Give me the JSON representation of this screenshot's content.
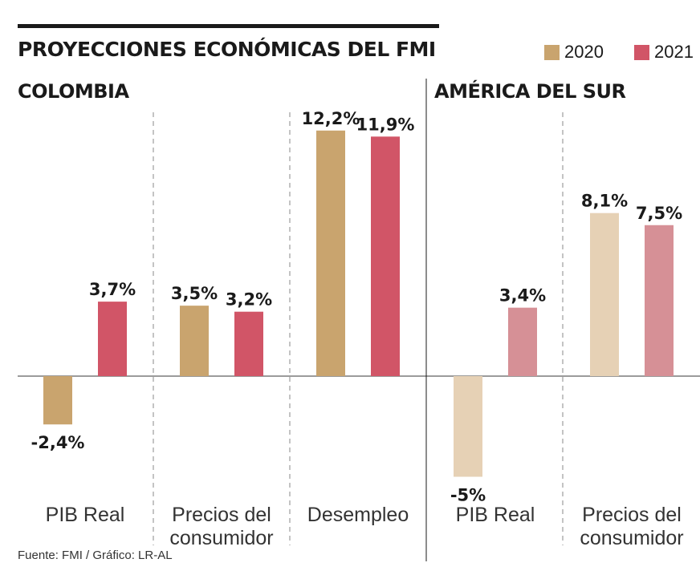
{
  "title": "PROYECCIONES ECONÓMICAS DEL FMI",
  "source": "Fuente: FMI / Gráfico: LR-AL",
  "legend": [
    {
      "label": "2020",
      "color": "#c9a46e"
    },
    {
      "label": "2021",
      "color": "#d15567"
    }
  ],
  "chart_data": [
    {
      "type": "bar",
      "section": "COLOMBIA",
      "categories": [
        "PIB Real",
        "Precios del consumidor",
        "Desempleo"
      ],
      "category_lines": [
        [
          "PIB Real"
        ],
        [
          "Precios del",
          "consumidor"
        ],
        [
          "Desempleo"
        ]
      ],
      "series": [
        {
          "name": "2020",
          "values": [
            -2.4,
            3.5,
            12.2
          ],
          "labels": [
            "-2,4%",
            "3,5%",
            "12,2%"
          ],
          "color": "#c9a46e"
        },
        {
          "name": "2021",
          "values": [
            3.7,
            3.2,
            11.9
          ],
          "labels": [
            "3,7%",
            "3,2%",
            "11,9%"
          ],
          "color": "#d15567"
        }
      ]
    },
    {
      "type": "bar",
      "section": "AMÉRICA DEL SUR",
      "categories": [
        "PIB Real",
        "Precios del consumidor"
      ],
      "category_lines": [
        [
          "PIB Real"
        ],
        [
          "Precios del",
          "consumidor"
        ]
      ],
      "series": [
        {
          "name": "2020",
          "values": [
            -5,
            8.1
          ],
          "labels": [
            "-5%",
            "8,1%"
          ],
          "color": "#e6d1b5"
        },
        {
          "name": "2021",
          "values": [
            3.4,
            7.5
          ],
          "labels": [
            "3,4%",
            "7,5%"
          ],
          "color": "#d69096"
        }
      ]
    }
  ]
}
